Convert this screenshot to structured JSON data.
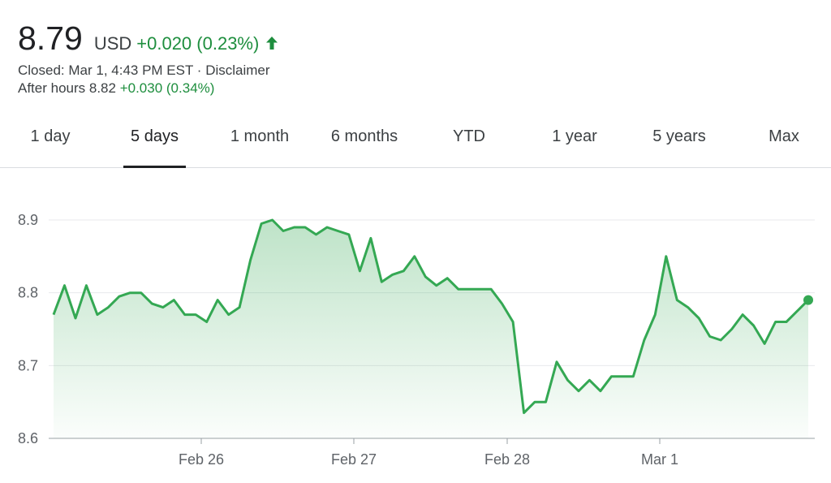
{
  "quote": {
    "price": "8.79",
    "currency": "USD",
    "change": "+0.020 (0.23%)",
    "closed_text": "Closed: Mar 1, 4:43 PM EST",
    "separator": "·",
    "disclaimer": "Disclaimer",
    "after_hours_label": "After hours 8.82",
    "after_hours_change": "+0.030 (0.34%)",
    "direction_icon": "arrow-up-icon"
  },
  "tabs": [
    "1 day",
    "5 days",
    "1 month",
    "6 months",
    "YTD",
    "1 year",
    "5 years",
    "Max"
  ],
  "active_tab": "5 days",
  "colors": {
    "positive": "#1e8e3e",
    "line": "#34a853",
    "text": "#202124"
  },
  "chart_data": {
    "type": "area",
    "title": "",
    "xlabel": "",
    "ylabel": "",
    "ylim": [
      8.6,
      8.9
    ],
    "yticks": [
      "8.6",
      "8.7",
      "8.8",
      "8.9"
    ],
    "xtick_labels": [
      "Feb 26",
      "Feb 27",
      "Feb 28",
      "Mar 1"
    ],
    "grid": true,
    "series": [
      {
        "values": [
          8.77,
          8.81,
          8.765,
          8.81,
          8.77,
          8.78,
          8.795,
          8.8,
          8.8,
          8.785,
          8.78,
          8.79,
          8.77,
          8.77,
          8.76,
          8.79,
          8.77,
          8.78,
          8.845,
          8.895,
          8.9,
          8.885,
          8.89,
          8.89,
          8.88,
          8.89,
          8.885,
          8.88,
          8.83,
          8.875,
          8.815,
          8.825,
          8.83,
          8.85,
          8.822,
          8.81,
          8.82,
          8.805,
          8.805,
          8.805,
          8.805,
          8.785,
          8.76,
          8.635,
          8.65,
          8.65,
          8.705,
          8.68,
          8.665,
          8.68,
          8.665,
          8.685,
          8.685,
          8.685,
          8.735,
          8.77,
          8.85,
          8.79,
          8.78,
          8.765,
          8.74,
          8.735,
          8.75,
          8.77,
          8.755,
          8.73,
          8.76,
          8.76,
          8.775,
          8.79
        ]
      }
    ]
  }
}
